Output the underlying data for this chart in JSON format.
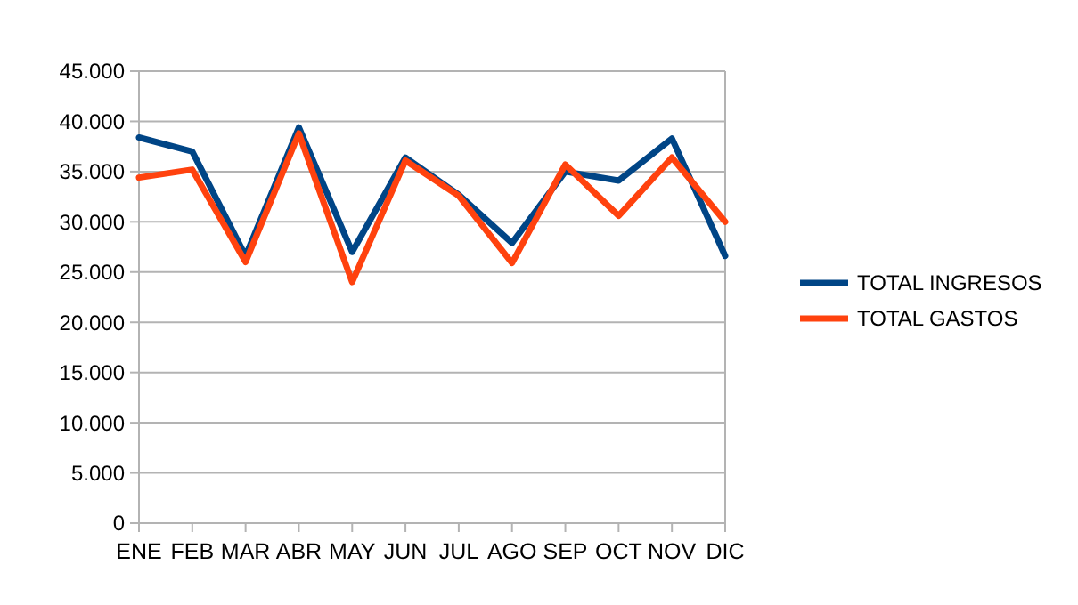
{
  "chart_data": {
    "type": "line",
    "categories": [
      "ENE",
      "FEB",
      "MAR",
      "ABR",
      "MAY",
      "JUN",
      "JUL",
      "AGO",
      "SEP",
      "OCT",
      "NOV",
      "DIC"
    ],
    "series": [
      {
        "name": "TOTAL INGRESOS",
        "color": "#004586",
        "values": [
          38400,
          37000,
          26600,
          39400,
          27000,
          36400,
          32700,
          27900,
          35000,
          34100,
          38300,
          26600
        ]
      },
      {
        "name": "TOTAL GASTOS",
        "color": "#ff420e",
        "values": [
          34400,
          35200,
          26000,
          38800,
          24000,
          36100,
          32600,
          25900,
          35700,
          30600,
          36400,
          30000
        ]
      }
    ],
    "ylim": [
      0,
      45000
    ],
    "yticks": [
      0,
      {
        "value": 5000,
        "label": "5.000"
      },
      {
        "value": 10000,
        "label": "10.000"
      },
      {
        "value": 15000,
        "label": "15.000"
      },
      {
        "value": 20000,
        "label": "20.000"
      },
      {
        "value": 25000,
        "label": "25.000"
      },
      {
        "value": 30000,
        "label": "30.000"
      },
      {
        "value": 35000,
        "label": "35.000"
      },
      {
        "value": 40000,
        "label": "40.000"
      },
      {
        "value": 45000,
        "label": "45.000"
      }
    ],
    "grid": "y",
    "legend": "right",
    "marker": "none",
    "line_style": "solid"
  }
}
